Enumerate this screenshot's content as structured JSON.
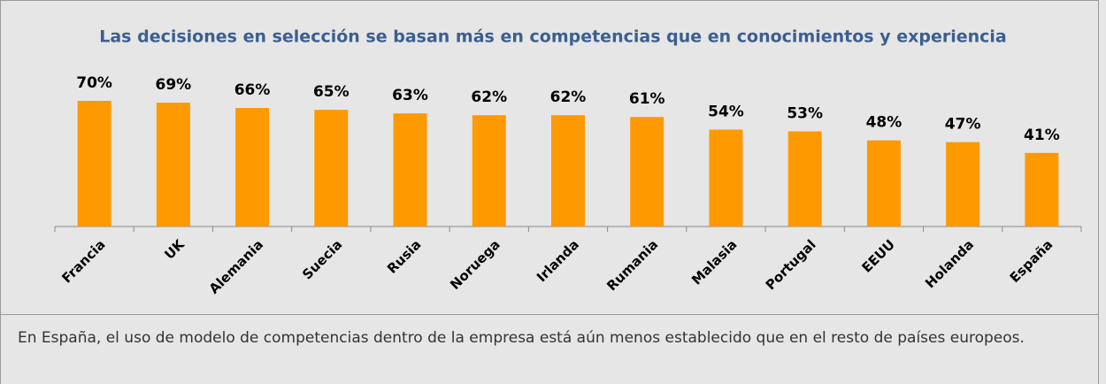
{
  "chart_data": {
    "type": "bar",
    "title": "Las decisiones en selección se basan más en competencias que en conocimientos y experiencia",
    "categories": [
      "Francia",
      "UK",
      "Alemania",
      "Suecia",
      "Rusia",
      "Noruega",
      "Irlanda",
      "Rumania",
      "Malasia",
      "Portugal",
      "EEUU",
      "Holanda",
      "España"
    ],
    "values": [
      70,
      69,
      66,
      65,
      63,
      62,
      62,
      61,
      54,
      53,
      48,
      47,
      41
    ],
    "value_labels": [
      "70%",
      "69%",
      "66%",
      "65%",
      "63%",
      "62%",
      "62%",
      "61%",
      "54%",
      "53%",
      "48%",
      "47%",
      "41%"
    ],
    "color": "#ff9900",
    "ylim": [
      0,
      90
    ]
  },
  "footer": "En España, el uso de modelo de competencias dentro de la empresa está aún menos establecido que en el resto de países europeos."
}
